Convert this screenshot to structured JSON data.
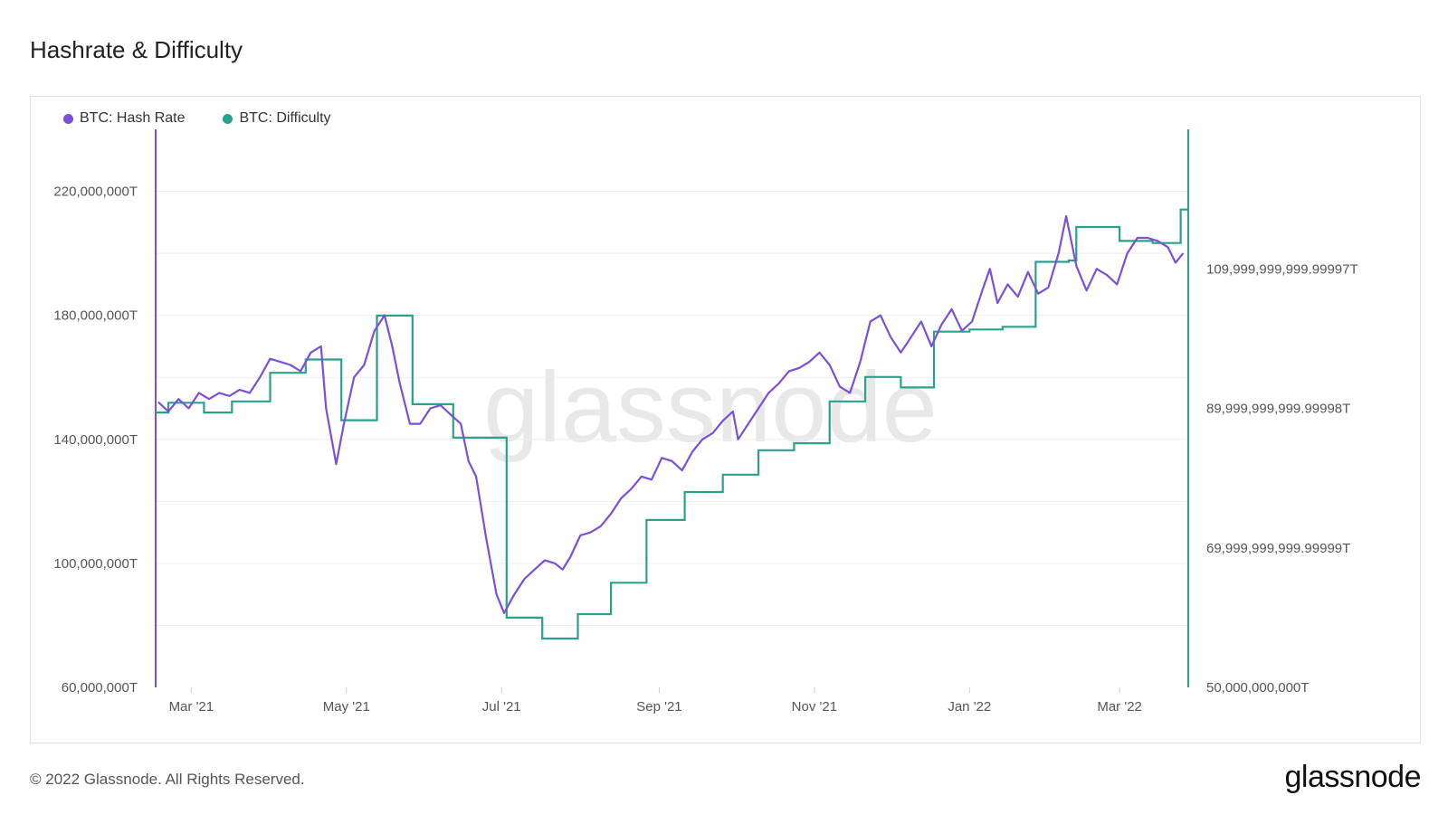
{
  "title": "Hashrate & Difficulty",
  "watermark": "glassnode",
  "footer": {
    "copyright": "© 2022 Glassnode. All Rights Reserved.",
    "logo": "glassnode"
  },
  "colors": {
    "hash_rate": "#7b4fd9",
    "difficulty": "#2aa18d",
    "grid": "#eeeeee"
  },
  "chart_data": {
    "type": "line",
    "legend": [
      {
        "name": "BTC: Hash Rate",
        "color": "#7b4fd9"
      },
      {
        "name": "BTC: Difficulty",
        "color": "#2aa18d"
      }
    ],
    "x_ticks": [
      "Mar '21",
      "May '21",
      "Jul '21",
      "Sep '21",
      "Nov '21",
      "Jan '22",
      "Mar '22"
    ],
    "x_tick_dates": [
      "2021-03-01",
      "2021-05-01",
      "2021-07-01",
      "2021-09-01",
      "2021-11-01",
      "2022-01-01",
      "2022-03-01"
    ],
    "x_range": [
      "2021-02-15",
      "2022-03-28"
    ],
    "y_left": {
      "ticks": [
        "220,000,000T",
        "180,000,000T",
        "140,000,000T",
        "100,000,000T",
        "60,000,000T"
      ],
      "tick_values": [
        220000000,
        180000000,
        140000000,
        100000000,
        60000000
      ],
      "range": [
        60000000,
        240000000
      ]
    },
    "y_right": {
      "ticks": [
        "109,999,999,999.99997T",
        "89,999,999,999.99998T",
        "69,999,999,999.99999T",
        "50,000,000,000T"
      ],
      "tick_values": [
        110000000000,
        90000000000,
        70000000000,
        50000000000
      ],
      "range": [
        50000000000,
        130000000000
      ]
    },
    "series": [
      {
        "name": "BTC: Hash Rate",
        "axis": "left",
        "points": [
          [
            "2021-02-16",
            152000000
          ],
          [
            "2021-02-20",
            149000000
          ],
          [
            "2021-02-24",
            153000000
          ],
          [
            "2021-02-28",
            150000000
          ],
          [
            "2021-03-04",
            155000000
          ],
          [
            "2021-03-08",
            153000000
          ],
          [
            "2021-03-12",
            155000000
          ],
          [
            "2021-03-16",
            154000000
          ],
          [
            "2021-03-20",
            156000000
          ],
          [
            "2021-03-24",
            155000000
          ],
          [
            "2021-03-28",
            160000000
          ],
          [
            "2021-04-01",
            166000000
          ],
          [
            "2021-04-05",
            165000000
          ],
          [
            "2021-04-09",
            164000000
          ],
          [
            "2021-04-13",
            162000000
          ],
          [
            "2021-04-17",
            168000000
          ],
          [
            "2021-04-21",
            170000000
          ],
          [
            "2021-04-23",
            150000000
          ],
          [
            "2021-04-27",
            132000000
          ],
          [
            "2021-04-30",
            145000000
          ],
          [
            "2021-05-04",
            160000000
          ],
          [
            "2021-05-08",
            164000000
          ],
          [
            "2021-05-12",
            175000000
          ],
          [
            "2021-05-16",
            180000000
          ],
          [
            "2021-05-19",
            170000000
          ],
          [
            "2021-05-22",
            158000000
          ],
          [
            "2021-05-26",
            145000000
          ],
          [
            "2021-05-30",
            145000000
          ],
          [
            "2021-06-03",
            150000000
          ],
          [
            "2021-06-07",
            151000000
          ],
          [
            "2021-06-11",
            148000000
          ],
          [
            "2021-06-15",
            145000000
          ],
          [
            "2021-06-18",
            133000000
          ],
          [
            "2021-06-21",
            128000000
          ],
          [
            "2021-06-25",
            108000000
          ],
          [
            "2021-06-29",
            90000000
          ],
          [
            "2021-07-02",
            84000000
          ],
          [
            "2021-07-06",
            90000000
          ],
          [
            "2021-07-10",
            95000000
          ],
          [
            "2021-07-14",
            98000000
          ],
          [
            "2021-07-18",
            101000000
          ],
          [
            "2021-07-22",
            100000000
          ],
          [
            "2021-07-25",
            98000000
          ],
          [
            "2021-07-28",
            102000000
          ],
          [
            "2021-08-01",
            109000000
          ],
          [
            "2021-08-05",
            110000000
          ],
          [
            "2021-08-09",
            112000000
          ],
          [
            "2021-08-13",
            116000000
          ],
          [
            "2021-08-17",
            121000000
          ],
          [
            "2021-08-21",
            124000000
          ],
          [
            "2021-08-25",
            128000000
          ],
          [
            "2021-08-29",
            127000000
          ],
          [
            "2021-09-02",
            134000000
          ],
          [
            "2021-09-06",
            133000000
          ],
          [
            "2021-09-10",
            130000000
          ],
          [
            "2021-09-14",
            136000000
          ],
          [
            "2021-09-18",
            140000000
          ],
          [
            "2021-09-22",
            142000000
          ],
          [
            "2021-09-26",
            146000000
          ],
          [
            "2021-09-30",
            149000000
          ],
          [
            "2021-10-02",
            140000000
          ],
          [
            "2021-10-06",
            145000000
          ],
          [
            "2021-10-10",
            150000000
          ],
          [
            "2021-10-14",
            155000000
          ],
          [
            "2021-10-18",
            158000000
          ],
          [
            "2021-10-22",
            162000000
          ],
          [
            "2021-10-26",
            163000000
          ],
          [
            "2021-10-30",
            165000000
          ],
          [
            "2021-11-03",
            168000000
          ],
          [
            "2021-11-07",
            164000000
          ],
          [
            "2021-11-11",
            157000000
          ],
          [
            "2021-11-15",
            155000000
          ],
          [
            "2021-11-19",
            165000000
          ],
          [
            "2021-11-23",
            178000000
          ],
          [
            "2021-11-27",
            180000000
          ],
          [
            "2021-12-01",
            173000000
          ],
          [
            "2021-12-05",
            168000000
          ],
          [
            "2021-12-09",
            173000000
          ],
          [
            "2021-12-13",
            178000000
          ],
          [
            "2021-12-17",
            170000000
          ],
          [
            "2021-12-21",
            177000000
          ],
          [
            "2021-12-25",
            182000000
          ],
          [
            "2021-12-29",
            175000000
          ],
          [
            "2022-01-02",
            178000000
          ],
          [
            "2022-01-06",
            188000000
          ],
          [
            "2022-01-09",
            195000000
          ],
          [
            "2022-01-12",
            184000000
          ],
          [
            "2022-01-16",
            190000000
          ],
          [
            "2022-01-20",
            186000000
          ],
          [
            "2022-01-24",
            194000000
          ],
          [
            "2022-01-28",
            187000000
          ],
          [
            "2022-02-01",
            189000000
          ],
          [
            "2022-02-05",
            200000000
          ],
          [
            "2022-02-08",
            212000000
          ],
          [
            "2022-02-12",
            196000000
          ],
          [
            "2022-02-16",
            188000000
          ],
          [
            "2022-02-20",
            195000000
          ],
          [
            "2022-02-24",
            193000000
          ],
          [
            "2022-02-28",
            190000000
          ],
          [
            "2022-03-04",
            200000000
          ],
          [
            "2022-03-08",
            205000000
          ],
          [
            "2022-03-12",
            205000000
          ],
          [
            "2022-03-16",
            204000000
          ],
          [
            "2022-03-20",
            202000000
          ],
          [
            "2022-03-23",
            197000000
          ],
          [
            "2022-03-26",
            200000000
          ]
        ]
      },
      {
        "name": "BTC: Difficulty",
        "axis": "right",
        "points": [
          [
            "2021-02-15",
            89400000000
          ],
          [
            "2021-02-20",
            89400000000
          ],
          [
            "2021-02-20",
            90800000000
          ],
          [
            "2021-03-06",
            90800000000
          ],
          [
            "2021-03-06",
            89400000000
          ],
          [
            "2021-03-17",
            89400000000
          ],
          [
            "2021-03-17",
            91000000000
          ],
          [
            "2021-04-01",
            91000000000
          ],
          [
            "2021-04-01",
            95100000000
          ],
          [
            "2021-04-15",
            95100000000
          ],
          [
            "2021-04-15",
            97000000000
          ],
          [
            "2021-04-29",
            97000000000
          ],
          [
            "2021-04-29",
            88300000000
          ],
          [
            "2021-05-13",
            88300000000
          ],
          [
            "2021-05-13",
            103300000000
          ],
          [
            "2021-05-27",
            103300000000
          ],
          [
            "2021-05-27",
            90600000000
          ],
          [
            "2021-06-12",
            90600000000
          ],
          [
            "2021-06-12",
            85800000000
          ],
          [
            "2021-07-03",
            85800000000
          ],
          [
            "2021-07-03",
            60000000000
          ],
          [
            "2021-07-17",
            60000000000
          ],
          [
            "2021-07-17",
            57000000000
          ],
          [
            "2021-07-31",
            57000000000
          ],
          [
            "2021-07-31",
            60500000000
          ],
          [
            "2021-08-13",
            60500000000
          ],
          [
            "2021-08-13",
            65000000000
          ],
          [
            "2021-08-27",
            65000000000
          ],
          [
            "2021-08-27",
            74000000000
          ],
          [
            "2021-09-11",
            74000000000
          ],
          [
            "2021-09-11",
            78000000000
          ],
          [
            "2021-09-26",
            78000000000
          ],
          [
            "2021-09-26",
            80500000000
          ],
          [
            "2021-10-10",
            80500000000
          ],
          [
            "2021-10-10",
            84000000000
          ],
          [
            "2021-10-24",
            84000000000
          ],
          [
            "2021-10-24",
            85000000000
          ],
          [
            "2021-11-07",
            85000000000
          ],
          [
            "2021-11-07",
            91000000000
          ],
          [
            "2021-11-21",
            91000000000
          ],
          [
            "2021-11-21",
            94500000000
          ],
          [
            "2021-12-05",
            94500000000
          ],
          [
            "2021-12-05",
            93000000000
          ],
          [
            "2021-12-18",
            93000000000
          ],
          [
            "2021-12-18",
            101000000000
          ],
          [
            "2022-01-01",
            101000000000
          ],
          [
            "2022-01-01",
            101300000000
          ],
          [
            "2022-01-14",
            101300000000
          ],
          [
            "2022-01-14",
            101700000000
          ],
          [
            "2022-01-27",
            101700000000
          ],
          [
            "2022-01-27",
            111000000000
          ],
          [
            "2022-02-09",
            111000000000
          ],
          [
            "2022-02-09",
            111200000000
          ],
          [
            "2022-02-12",
            111200000000
          ],
          [
            "2022-02-12",
            116000000000
          ],
          [
            "2022-03-01",
            116000000000
          ],
          [
            "2022-03-01",
            114000000000
          ],
          [
            "2022-03-14",
            114000000000
          ],
          [
            "2022-03-14",
            113700000000
          ],
          [
            "2022-03-25",
            113700000000
          ],
          [
            "2022-03-25",
            118500000000
          ],
          [
            "2022-03-28",
            118500000000
          ]
        ]
      }
    ],
    "grid": true,
    "legend_position": "top-left"
  }
}
